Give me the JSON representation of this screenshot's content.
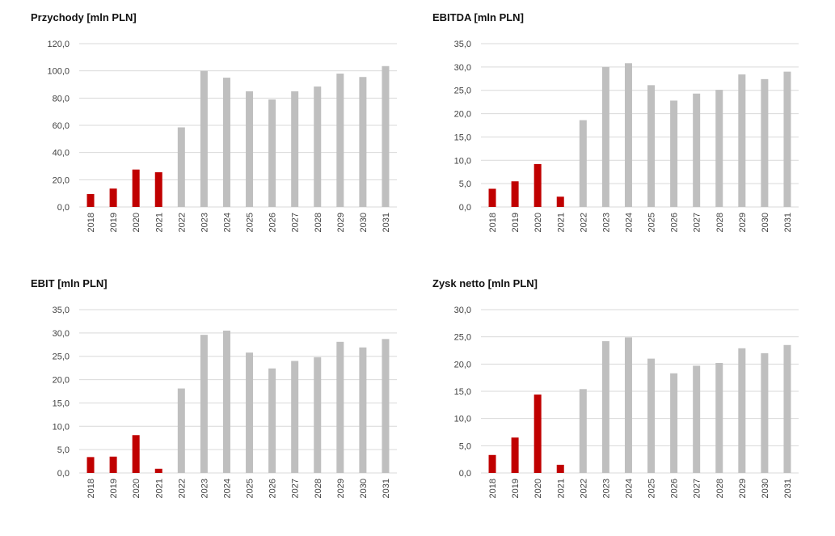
{
  "colors": {
    "historical": "#c00000",
    "forecast": "#bfbfbf",
    "grid": "#d9d9d9",
    "text": "#404040"
  },
  "chart_data": [
    {
      "type": "bar",
      "title": "Przychody [mln PLN]",
      "categories": [
        "2018",
        "2019",
        "2020",
        "2021",
        "2022",
        "2023",
        "2024",
        "2025",
        "2026",
        "2027",
        "2028",
        "2029",
        "2030",
        "2031"
      ],
      "values": [
        9.5,
        13.5,
        27.5,
        25.5,
        58.5,
        100.0,
        95.0,
        85.0,
        79.0,
        85.0,
        88.5,
        98.0,
        95.5,
        103.5
      ],
      "historical_count": 4,
      "ylim": [
        0,
        120
      ],
      "yticks": [
        "0,0",
        "20,0",
        "40,0",
        "60,0",
        "80,0",
        "100,0",
        "120,0"
      ],
      "grid": true
    },
    {
      "type": "bar",
      "title": "EBITDA [mln PLN]",
      "categories": [
        "2018",
        "2019",
        "2020",
        "2021",
        "2022",
        "2023",
        "2024",
        "2025",
        "2026",
        "2027",
        "2028",
        "2029",
        "2030",
        "2031"
      ],
      "values": [
        3.9,
        5.5,
        9.2,
        2.2,
        18.6,
        30.0,
        30.8,
        26.1,
        22.8,
        24.3,
        25.1,
        28.4,
        27.4,
        29.0
      ],
      "historical_count": 4,
      "ylim": [
        0,
        35
      ],
      "yticks": [
        "0,0",
        "5,0",
        "10,0",
        "15,0",
        "20,0",
        "25,0",
        "30,0",
        "35,0"
      ],
      "grid": true
    },
    {
      "type": "bar",
      "title": "EBIT [mln PLN]",
      "categories": [
        "2018",
        "2019",
        "2020",
        "2021",
        "2022",
        "2023",
        "2024",
        "2025",
        "2026",
        "2027",
        "2028",
        "2029",
        "2030",
        "2031"
      ],
      "values": [
        3.4,
        3.5,
        8.1,
        0.9,
        18.1,
        29.6,
        30.5,
        25.8,
        22.4,
        24.0,
        24.8,
        28.1,
        26.9,
        28.7
      ],
      "historical_count": 4,
      "ylim": [
        0,
        35
      ],
      "yticks": [
        "0,0",
        "5,0",
        "10,0",
        "15,0",
        "20,0",
        "25,0",
        "30,0",
        "35,0"
      ],
      "grid": true
    },
    {
      "type": "bar",
      "title": "Zysk netto [mln PLN]",
      "categories": [
        "2018",
        "2019",
        "2020",
        "2021",
        "2022",
        "2023",
        "2024",
        "2025",
        "2026",
        "2027",
        "2028",
        "2029",
        "2030",
        "2031"
      ],
      "values": [
        3.3,
        6.5,
        14.4,
        1.5,
        15.4,
        24.2,
        24.9,
        21.0,
        18.3,
        19.7,
        20.2,
        22.9,
        22.0,
        23.5
      ],
      "historical_count": 4,
      "ylim": [
        0,
        30
      ],
      "yticks": [
        "0,0",
        "5,0",
        "10,0",
        "15,0",
        "20,0",
        "25,0",
        "30,0"
      ],
      "grid": true
    }
  ]
}
